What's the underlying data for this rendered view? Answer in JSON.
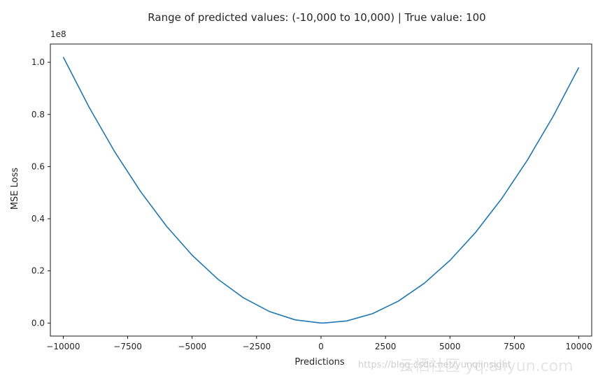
{
  "chart_data": {
    "type": "line",
    "title": "Range of predicted values: (-10,000 to 10,000) | True value: 100",
    "xlabel": "Predictions",
    "ylabel": "MSE Loss",
    "y_offset_label": "1e8",
    "xlim": [
      -10500,
      10500
    ],
    "ylim": [
      -0.05,
      1.07
    ],
    "x_ticks": [
      -10000,
      -7500,
      -5000,
      -2500,
      0,
      2500,
      5000,
      7500,
      10000
    ],
    "x_tick_labels": [
      "−10000",
      "−7500",
      "−5000",
      "−2500",
      "0",
      "2500",
      "5000",
      "7500",
      "10000"
    ],
    "y_ticks": [
      0.0,
      0.2,
      0.4,
      0.6,
      0.8,
      1.0
    ],
    "y_tick_labels": [
      "0.0",
      "0.2",
      "0.4",
      "0.6",
      "0.8",
      "1.0"
    ],
    "grid": false,
    "series": [
      {
        "color": "#1f77b4",
        "x": [
          -10000,
          -9000,
          -8000,
          -7000,
          -6000,
          -5000,
          -4000,
          -3000,
          -2000,
          -1000,
          0,
          100,
          1000,
          2000,
          3000,
          4000,
          5000,
          6000,
          7000,
          8000,
          9000,
          10000
        ],
        "values": [
          1.0201,
          0.8281,
          0.6561,
          0.5041,
          0.3721,
          0.2601,
          0.1681,
          0.0961,
          0.0441,
          0.0121,
          0.0001,
          0.0,
          0.0081,
          0.0361,
          0.0841,
          0.1521,
          0.2401,
          0.3481,
          0.4761,
          0.6241,
          0.7921,
          0.9801
        ]
      }
    ]
  },
  "watermark": {
    "text": "https://blog.csdn.net/yunqiinsight",
    "overlay_text": "云栖社区 yq.aliyun.com"
  }
}
